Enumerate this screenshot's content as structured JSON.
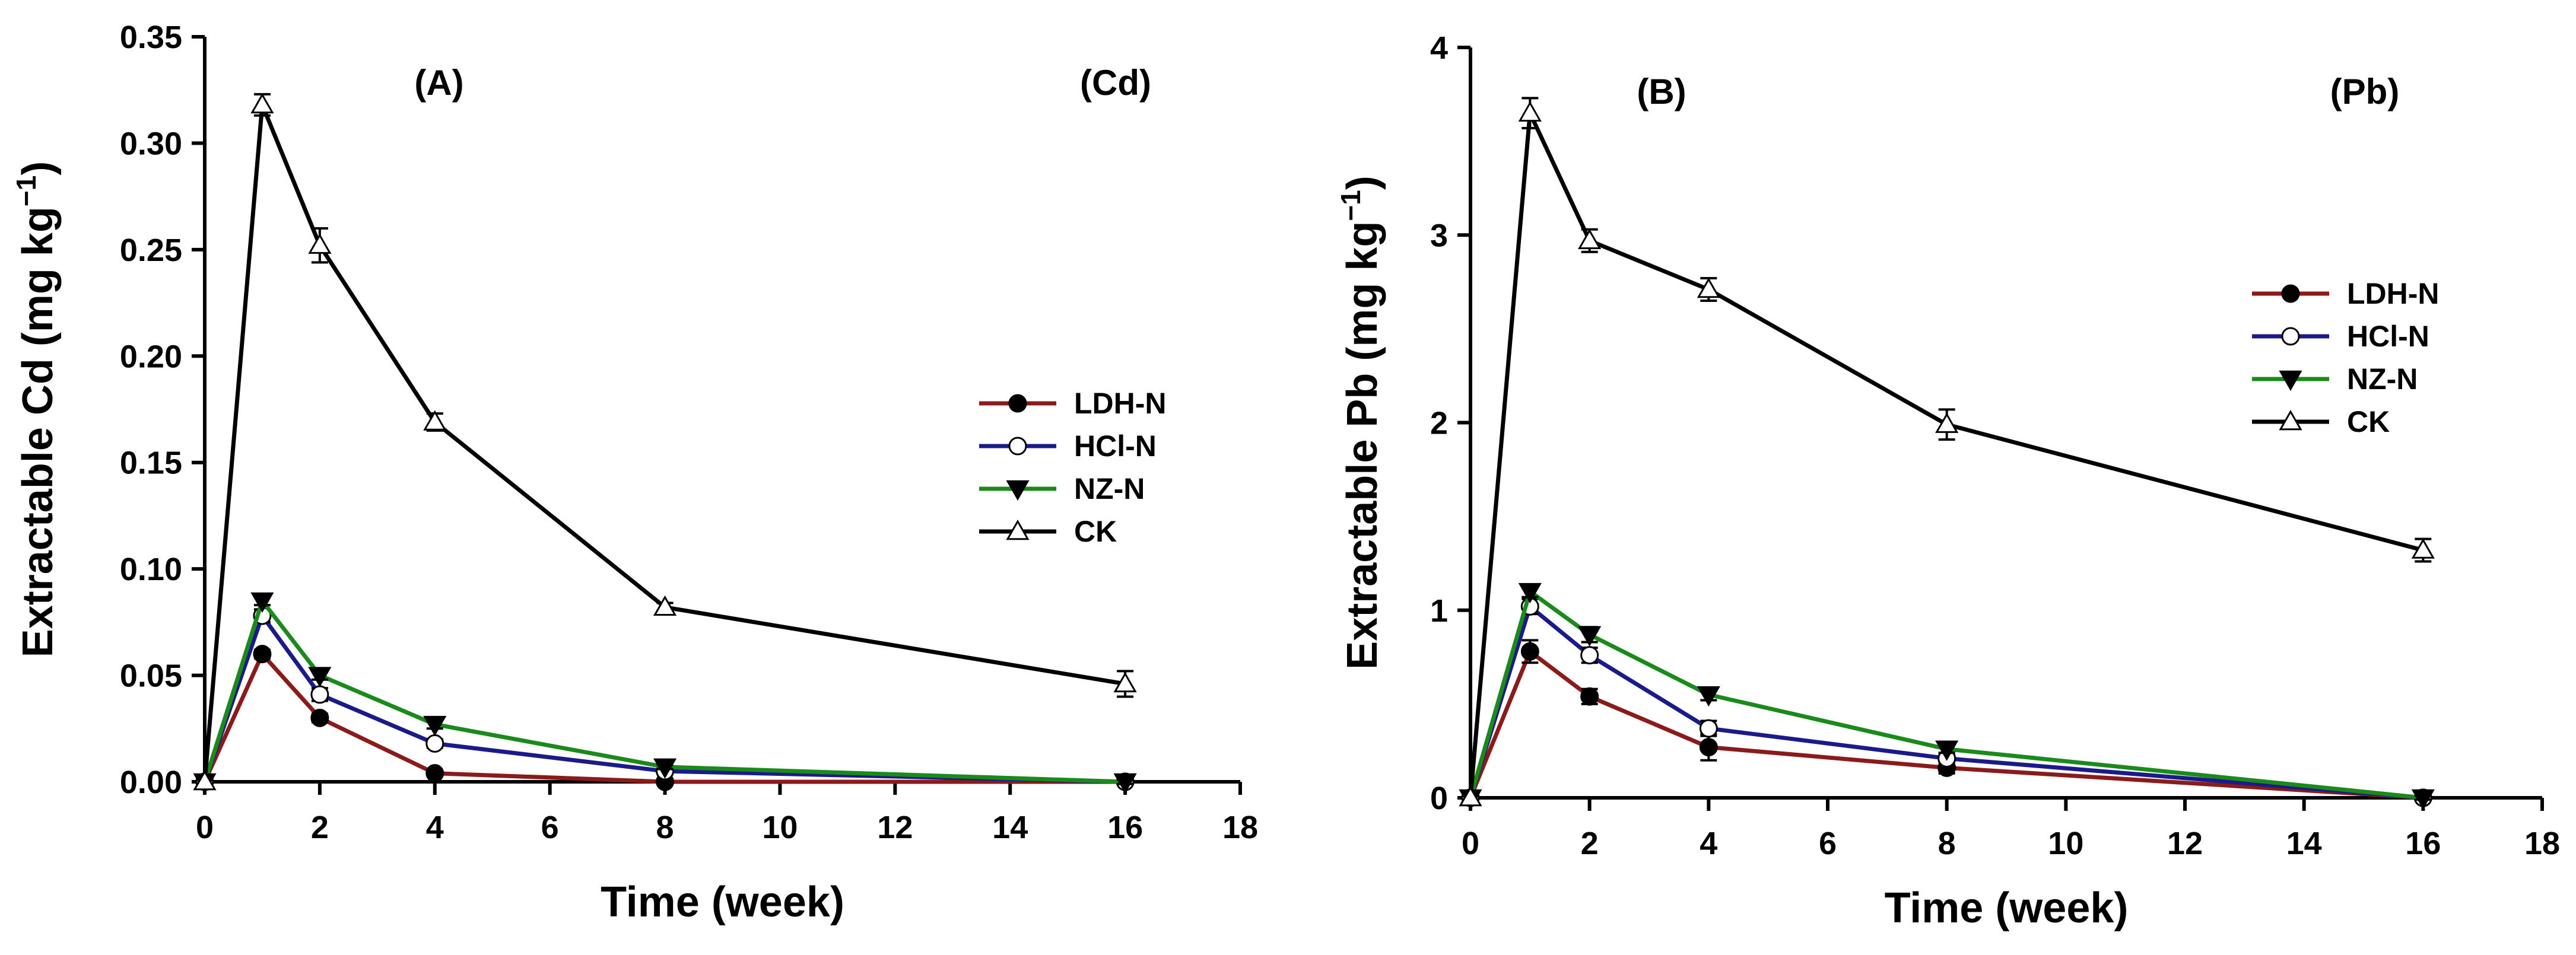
{
  "chart_data": [
    {
      "type": "line",
      "panel_label": "(A)",
      "metal_label": "(Cd)",
      "xlabel": "Time (week)",
      "ylabel_main": "Extractable Cd (mg kg",
      "ylabel_exp": "−1",
      "ylabel_close": ")",
      "xlim": [
        0,
        18
      ],
      "ylim": [
        0,
        0.35
      ],
      "xticks": [
        0,
        2,
        4,
        6,
        8,
        10,
        12,
        14,
        16,
        18
      ],
      "yticks": [
        0.0,
        0.05,
        0.1,
        0.15,
        0.2,
        0.25,
        0.3,
        0.35
      ],
      "xtick_labels": [
        "0",
        "2",
        "4",
        "6",
        "8",
        "10",
        "12",
        "14",
        "16",
        "18"
      ],
      "ytick_labels": [
        "0.00",
        "0.05",
        "0.10",
        "0.15",
        "0.20",
        "0.25",
        "0.30",
        "0.35"
      ],
      "legend_position": "center-right",
      "x": [
        0,
        1,
        2,
        4,
        8,
        16
      ],
      "series": [
        {
          "name": "LDH-N",
          "color": "#8b1a1a",
          "marker": "filled-circle",
          "values": [
            0,
            0.06,
            0.03,
            0.004,
            0.0,
            0.0
          ],
          "errors": [
            0,
            0.002,
            0.002,
            0.001,
            0.001,
            0.001
          ]
        },
        {
          "name": "HCl-N",
          "color": "#1a1a8b",
          "marker": "open-circle",
          "values": [
            0,
            0.078,
            0.041,
            0.018,
            0.005,
            0.0
          ],
          "errors": [
            0,
            0.003,
            0.003,
            0.002,
            0.001,
            0.001
          ]
        },
        {
          "name": "NZ-N",
          "color": "#1a8b1a",
          "marker": "filled-triangle-down",
          "values": [
            0,
            0.085,
            0.05,
            0.027,
            0.007,
            0.0
          ],
          "errors": [
            0,
            0.002,
            0.002,
            0.002,
            0.001,
            0.001
          ]
        },
        {
          "name": "CK",
          "color": "#000000",
          "marker": "open-triangle-up",
          "values": [
            0,
            0.318,
            0.252,
            0.169,
            0.082,
            0.046
          ],
          "errors": [
            0,
            0.005,
            0.008,
            0.004,
            0.002,
            0.006
          ]
        }
      ]
    },
    {
      "type": "line",
      "panel_label": "(B)",
      "metal_label": "(Pb)",
      "xlabel": "Time (week)",
      "ylabel_main": "Extractable Pb (mg kg",
      "ylabel_exp": "−1",
      "ylabel_close": ")",
      "xlim": [
        0,
        18
      ],
      "ylim": [
        0,
        4
      ],
      "xticks": [
        0,
        2,
        4,
        6,
        8,
        10,
        12,
        14,
        16,
        18
      ],
      "yticks": [
        0,
        1,
        2,
        3,
        4
      ],
      "xtick_labels": [
        "0",
        "2",
        "4",
        "6",
        "8",
        "10",
        "12",
        "14",
        "16",
        "18"
      ],
      "ytick_labels": [
        "0",
        "1",
        "2",
        "3",
        "4"
      ],
      "legend_position": "center-right",
      "x": [
        0,
        1,
        2,
        4,
        8,
        16
      ],
      "series": [
        {
          "name": "LDH-N",
          "color": "#8b1a1a",
          "marker": "filled-circle",
          "values": [
            0,
            0.78,
            0.54,
            0.27,
            0.16,
            0.0
          ],
          "errors": [
            0,
            0.06,
            0.04,
            0.07,
            0.03,
            0.01
          ]
        },
        {
          "name": "HCl-N",
          "color": "#1a1a8b",
          "marker": "open-circle",
          "values": [
            0,
            1.02,
            0.76,
            0.37,
            0.21,
            0.0
          ],
          "errors": [
            0,
            0.04,
            0.04,
            0.04,
            0.02,
            0.01
          ]
        },
        {
          "name": "NZ-N",
          "color": "#1a8b1a",
          "marker": "filled-triangle-down",
          "values": [
            0,
            1.1,
            0.87,
            0.55,
            0.26,
            0.0
          ],
          "errors": [
            0,
            0.03,
            0.04,
            0.03,
            0.02,
            0.01
          ]
        },
        {
          "name": "CK",
          "color": "#000000",
          "marker": "open-triangle-up",
          "values": [
            0,
            3.65,
            2.97,
            2.71,
            1.99,
            1.32
          ],
          "errors": [
            0,
            0.08,
            0.06,
            0.06,
            0.08,
            0.06
          ]
        }
      ]
    }
  ]
}
